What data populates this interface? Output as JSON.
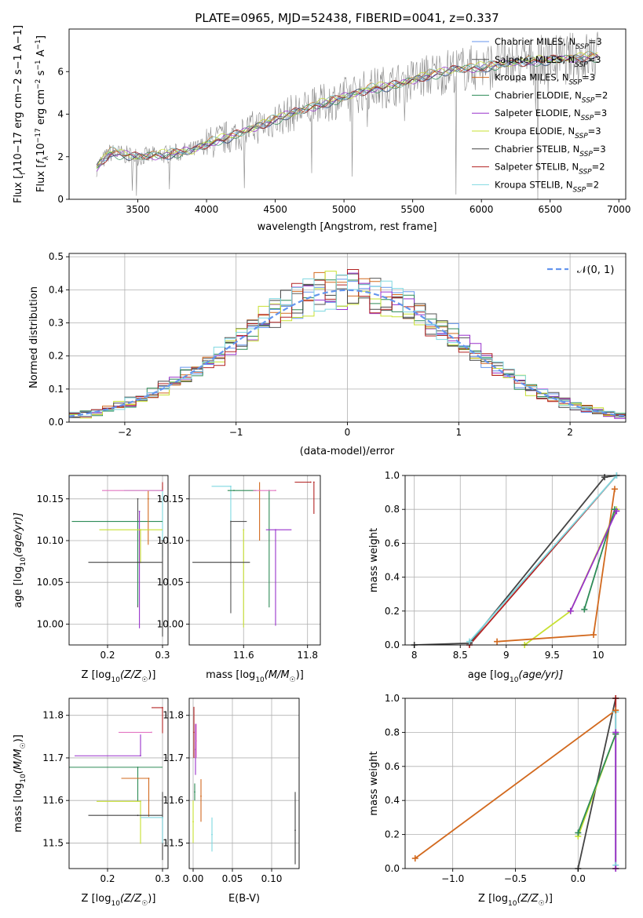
{
  "chart_data": [
    {
      "id": "spectrum",
      "type": "line",
      "title": "PLATE=0965, MJD=52438, FIBERID=0041, z=0.337",
      "xlabel": "wavelength [Angstrom, rest frame]",
      "ylabel_parts": [
        "Flux [",
        "f",
        "λ",
        "10",
        "−17",
        " erg cm",
        "−2",
        " s",
        "−1",
        " A",
        "−1",
        "]"
      ],
      "xlim": [
        3000,
        7050
      ],
      "ylim": [
        0,
        8
      ],
      "xticks": [
        3500,
        4000,
        4500,
        5000,
        5500,
        6000,
        6500,
        7000
      ],
      "yticks": [
        0,
        2,
        4,
        6
      ],
      "grid": false,
      "legend_position": "right",
      "series": [
        {
          "name": "Chabrier MILES",
          "nssp": "3",
          "color": "#6495ed"
        },
        {
          "name": "Salpeter MILES",
          "nssp": "3",
          "color": "#555555"
        },
        {
          "name": "Kroupa MILES",
          "nssp": "3",
          "color": "#d2691e"
        },
        {
          "name": "Chabrier ELODIE",
          "nssp": "2",
          "color": "#2e8b57"
        },
        {
          "name": "Salpeter ELODIE",
          "nssp": "3",
          "color": "#9932cc"
        },
        {
          "name": "Kroupa ELODIE",
          "nssp": "3",
          "color": "#c7e030"
        },
        {
          "name": "Chabrier STELIB",
          "nssp": "3",
          "color": "#444444"
        },
        {
          "name": "Salpeter STELIB",
          "nssp": "2",
          "color": "#b22222"
        },
        {
          "name": "Kroupa STELIB",
          "nssp": "2",
          "color": "#7fd8e0"
        }
      ],
      "continuum": {
        "wavelength": [
          3200,
          3300,
          3500,
          3700,
          3900,
          4000,
          4200,
          4400,
          4600,
          4800,
          5000,
          5200,
          5400,
          5600,
          5800,
          6000,
          6200,
          6400,
          6600,
          6800
        ],
        "flux": [
          1.5,
          2.2,
          2.0,
          2.1,
          2.3,
          2.6,
          3.0,
          3.5,
          4.0,
          4.4,
          4.8,
          5.2,
          5.4,
          5.8,
          6.1,
          6.2,
          6.4,
          6.5,
          6.6,
          6.7
        ]
      },
      "data_range": [
        3200,
        6850
      ]
    },
    {
      "id": "residuals",
      "type": "bar",
      "xlabel": "(data-model)/error",
      "ylabel": "Normed distribution",
      "xlim": [
        -2.5,
        2.5
      ],
      "ylim": [
        0,
        0.51
      ],
      "xticks": [
        -2,
        -1,
        0,
        1,
        2
      ],
      "yticks": [
        0.0,
        0.1,
        0.2,
        0.3,
        0.4,
        0.5
      ],
      "grid": true,
      "legend_position": "top-right",
      "legend_label": "𝒩(0, 1)",
      "bin_width": 0.1,
      "series_colors": [
        "#6495ed",
        "#555555",
        "#d2691e",
        "#2e8b57",
        "#9932cc",
        "#c7e030",
        "#444444",
        "#b22222",
        "#7fd8e0"
      ],
      "gauss_color": "#6495ed"
    },
    {
      "id": "age-vs-z",
      "type": "errorbar",
      "xlabel_parts": [
        "Z [log",
        "10",
        "(Z/Z",
        "☉",
        ")]"
      ],
      "ylabel_parts": [
        "age  [log",
        "10",
        "(age/yr)]"
      ],
      "xlim": [
        0.13,
        0.31
      ],
      "ylim": [
        9.975,
        10.178
      ],
      "xticks": [
        0.2,
        0.3
      ],
      "yticks": [
        10.0,
        10.05,
        10.1,
        10.15
      ],
      "grid": true,
      "points": [
        {
          "color": "#7fd8e0",
          "x": 0.3,
          "xerr": [
            0.07,
            0.0
          ],
          "y": 10.16,
          "yerr": [
            0.08,
            0.005
          ]
        },
        {
          "color": "#b22222",
          "x": 0.3,
          "xerr": [
            0.0,
            0.0
          ],
          "y": 10.16,
          "yerr": [
            0.0,
            0.01
          ]
        },
        {
          "color": "#555555",
          "x": 0.255,
          "xerr": [
            0.0,
            0.0
          ],
          "y": 10.15,
          "yerr": [
            0.13,
            0.0
          ]
        },
        {
          "color": "#2e8b57",
          "x": 0.255,
          "xerr": [
            0.12,
            0.045
          ],
          "y": 10.123,
          "yerr": [
            0.1,
            0.0
          ]
        },
        {
          "color": "#9932cc",
          "x": 0.258,
          "xerr": [
            0.0,
            0.0
          ],
          "y": 10.135,
          "yerr": [
            0.14,
            0.0
          ]
        },
        {
          "color": "#d2691e",
          "x": 0.274,
          "xerr": [
            0.0,
            0.0
          ],
          "y": 10.15,
          "yerr": [
            0.055,
            0.01
          ]
        },
        {
          "color": "#c7e030",
          "x": 0.26,
          "xerr": [
            0.075,
            0.04
          ],
          "y": 10.113,
          "yerr": [
            0.04,
            0.0
          ]
        },
        {
          "color": "#444444",
          "x": 0.255,
          "xerr": [
            0.09,
            0.045
          ],
          "y": 10.074,
          "yerr": [
            0.0,
            0.0
          ]
        },
        {
          "color": "#444444",
          "x": 0.3,
          "xerr": [
            0.0,
            0.0
          ],
          "y": 10.1,
          "yerr": [
            0.115,
            0.0
          ]
        },
        {
          "color": "#e377c2",
          "x": 0.3,
          "xerr": [
            0.11,
            0.0
          ],
          "y": 10.16,
          "yerr": [
            0.0,
            0.0
          ]
        }
      ]
    },
    {
      "id": "age-vs-mass",
      "type": "errorbar",
      "xlabel_parts": [
        "mass [log",
        "10",
        "(M/M",
        "☉",
        ")]"
      ],
      "ylabel_parts": [],
      "xlim": [
        11.43,
        11.84
      ],
      "ylim": [
        9.975,
        10.178
      ],
      "xticks": [
        11.6,
        11.8
      ],
      "yticks": [
        10.0,
        10.05,
        10.1,
        10.15
      ],
      "grid": true,
      "points": [
        {
          "color": "#7fd8e0",
          "x": 11.56,
          "xerr": [
            0.06,
            0.0
          ],
          "y": 10.165,
          "yerr": [
            0.075,
            0.0
          ]
        },
        {
          "color": "#555555",
          "x": 11.56,
          "xerr": [
            0.0,
            0.05
          ],
          "y": 10.123,
          "yerr": [
            0.11,
            0.0
          ]
        },
        {
          "color": "#2e8b57",
          "x": 11.57,
          "xerr": [
            0.02,
            0.07
          ],
          "y": 10.16,
          "yerr": [
            0.0,
            0.0
          ]
        },
        {
          "color": "#2e8b57",
          "x": 11.68,
          "xerr": [
            0.0,
            0.0
          ],
          "y": 10.16,
          "yerr": [
            0.14,
            0.0
          ]
        },
        {
          "color": "#d2691e",
          "x": 11.65,
          "xerr": [
            0.0,
            0.0
          ],
          "y": 10.16,
          "yerr": [
            0.06,
            0.01
          ]
        },
        {
          "color": "#9932cc",
          "x": 11.7,
          "xerr": [
            0.03,
            0.05
          ],
          "y": 10.113,
          "yerr": [
            0.115,
            0.0
          ]
        },
        {
          "color": "#c7e030",
          "x": 11.6,
          "xerr": [
            0.0,
            0.0
          ],
          "y": 10.113,
          "yerr": [
            0.117,
            0.0
          ]
        },
        {
          "color": "#444444",
          "x": 11.56,
          "xerr": [
            0.12,
            0.06
          ],
          "y": 10.074,
          "yerr": [
            0.0,
            0.0
          ]
        },
        {
          "color": "#b22222",
          "x": 11.81,
          "xerr": [
            0.05,
            0.0
          ],
          "y": 10.17,
          "yerr": [
            0.0,
            0.0
          ]
        },
        {
          "color": "#b22222",
          "x": 11.82,
          "xerr": [
            0.0,
            0.0
          ],
          "y": 10.17,
          "yerr": [
            0.038,
            0.0
          ]
        },
        {
          "color": "#e377c2",
          "x": 11.7,
          "xerr": [
            0.07,
            0.0
          ],
          "y": 10.16,
          "yerr": [
            0.0,
            0.0
          ]
        }
      ]
    },
    {
      "id": "mass-weight-vs-age",
      "type": "line",
      "xlabel_parts": [
        "age  [log",
        "10",
        "(age/yr)]"
      ],
      "ylabel": "mass weight",
      "xlim": [
        7.9,
        10.3
      ],
      "ylim": [
        0,
        1
      ],
      "xticks": [
        8.0,
        8.5,
        9.0,
        9.5,
        10.0
      ],
      "yticks": [
        0.0,
        0.2,
        0.4,
        0.6,
        0.8,
        1.0
      ],
      "grid": true,
      "series": [
        {
          "color": "#444444",
          "x": [
            8.0,
            8.6,
            10.07,
            10.2
          ],
          "y": [
            0.0,
            0.01,
            0.99,
            1.0
          ]
        },
        {
          "color": "#b22222",
          "x": [
            8.6,
            10.2
          ],
          "y": [
            0.0,
            1.0
          ]
        },
        {
          "color": "#7fd8e0",
          "x": [
            8.6,
            10.2
          ],
          "y": [
            0.02,
            1.0
          ]
        },
        {
          "color": "#c7e030",
          "x": [
            9.2,
            9.7,
            10.2
          ],
          "y": [
            0.0,
            0.2,
            0.8
          ]
        },
        {
          "color": "#d2691e",
          "x": [
            8.9,
            9.95,
            10.18
          ],
          "y": [
            0.02,
            0.06,
            0.92
          ]
        },
        {
          "color": "#2e8b57",
          "x": [
            9.85,
            10.18
          ],
          "y": [
            0.21,
            0.8
          ]
        },
        {
          "color": "#9932cc",
          "x": [
            9.7,
            10.2
          ],
          "y": [
            0.2,
            0.79
          ]
        }
      ]
    },
    {
      "id": "mass-vs-z",
      "type": "errorbar",
      "xlabel_parts": [
        "Z [log",
        "10",
        "(Z/Z",
        "☉",
        ")]"
      ],
      "ylabel_parts": [
        "mass [log",
        "10",
        "(M/M",
        "☉",
        ")]"
      ],
      "xlim": [
        0.13,
        0.31
      ],
      "ylim": [
        11.44,
        11.84
      ],
      "xticks": [
        0.2,
        0.3
      ],
      "yticks": [
        11.5,
        11.6,
        11.7,
        11.8
      ],
      "grid": true,
      "points": [
        {
          "color": "#b22222",
          "x": 0.3,
          "xerr": [
            0.02,
            0.0
          ],
          "y": 11.818,
          "yerr": [
            0.06,
            0.0
          ]
        },
        {
          "color": "#e377c2",
          "x": 0.28,
          "xerr": [
            0.06,
            0.0
          ],
          "y": 11.76,
          "yerr": [
            0.0,
            0.0
          ]
        },
        {
          "color": "#9932cc",
          "x": 0.26,
          "xerr": [
            0.12,
            0.0
          ],
          "y": 11.705,
          "yerr": [
            0.0,
            0.05
          ]
        },
        {
          "color": "#2e8b57",
          "x": 0.255,
          "xerr": [
            0.13,
            0.045
          ],
          "y": 11.678,
          "yerr": [
            0.08,
            0.0
          ]
        },
        {
          "color": "#d2691e",
          "x": 0.275,
          "xerr": [
            0.05,
            0.0
          ],
          "y": 11.652,
          "yerr": [
            0.09,
            0.0
          ]
        },
        {
          "color": "#c7e030",
          "x": 0.26,
          "xerr": [
            0.08,
            0.0
          ],
          "y": 11.598,
          "yerr": [
            0.1,
            0.0
          ]
        },
        {
          "color": "#444444",
          "x": 0.255,
          "xerr": [
            0.09,
            0.045
          ],
          "y": 11.565,
          "yerr": [
            0.0,
            0.0
          ]
        },
        {
          "color": "#444444",
          "x": 0.3,
          "xerr": [
            0.0,
            0.0
          ],
          "y": 11.56,
          "yerr": [
            0.1,
            0.06
          ]
        },
        {
          "color": "#7fd8e0",
          "x": 0.3,
          "xerr": [
            0.04,
            0.0
          ],
          "y": 11.56,
          "yerr": [
            0.06,
            0.0
          ]
        }
      ]
    },
    {
      "id": "mass-vs-ebv",
      "type": "errorbar",
      "xlabel": "E(B-V)",
      "ylabel_parts": [],
      "xlim": [
        -0.005,
        0.135
      ],
      "ylim": [
        11.44,
        11.84
      ],
      "xticks": [
        0.0,
        0.05,
        0.1
      ],
      "xtick_labels": [
        "0.00",
        "0.05",
        "0.10"
      ],
      "yticks": [
        11.5,
        11.6,
        11.7,
        11.8
      ],
      "grid": true,
      "points": [
        {
          "color": "#b22222",
          "x": 0.001,
          "xerr": [
            0.0,
            0.0
          ],
          "y": 11.76,
          "yerr": [
            0.06,
            0.06
          ]
        },
        {
          "color": "#9932cc",
          "x": 0.003,
          "xerr": [
            0.0,
            0.0
          ],
          "y": 11.72,
          "yerr": [
            0.06,
            0.06
          ]
        },
        {
          "color": "#e377c2",
          "x": 0.004,
          "xerr": [
            0.0,
            0.0
          ],
          "y": 11.74,
          "yerr": [
            0.04,
            0.04
          ]
        },
        {
          "color": "#d2691e",
          "x": 0.01,
          "xerr": [
            0.0,
            0.0
          ],
          "y": 11.61,
          "yerr": [
            0.06,
            0.04
          ]
        },
        {
          "color": "#c7e030",
          "x": 0.0,
          "xerr": [
            0.0,
            0.0
          ],
          "y": 11.55,
          "yerr": [
            0.05,
            0.05
          ]
        },
        {
          "color": "#2e8b57",
          "x": 0.002,
          "xerr": [
            0.0,
            0.0
          ],
          "y": 11.62,
          "yerr": [
            0.02,
            0.02
          ]
        },
        {
          "color": "#7fd8e0",
          "x": 0.024,
          "xerr": [
            0.0,
            0.0
          ],
          "y": 11.52,
          "yerr": [
            0.04,
            0.04
          ]
        },
        {
          "color": "#444444",
          "x": 0.13,
          "xerr": [
            0.0,
            0.0
          ],
          "y": 11.53,
          "yerr": [
            0.08,
            0.09
          ]
        }
      ]
    },
    {
      "id": "mass-weight-vs-z",
      "type": "line",
      "xlabel_parts": [
        "Z [log",
        "10",
        "(Z/Z",
        "☉",
        ")]"
      ],
      "ylabel": "mass weight",
      "xlim": [
        -1.38,
        0.38
      ],
      "ylim": [
        0,
        1
      ],
      "xticks": [
        -1.0,
        -0.5,
        0.0
      ],
      "xtick_labels": [
        "−1.0",
        "−0.5",
        "0.0"
      ],
      "yticks": [
        0.0,
        0.2,
        0.4,
        0.6,
        0.8,
        1.0
      ],
      "grid": true,
      "series": [
        {
          "color": "#444444",
          "x": [
            0.0,
            0.3
          ],
          "y": [
            0.0,
            1.0
          ]
        },
        {
          "color": "#b22222",
          "x": [
            0.3,
            0.3
          ],
          "y": [
            0.0,
            1.0
          ]
        },
        {
          "color": "#7fd8e0",
          "x": [
            0.3,
            0.3
          ],
          "y": [
            0.02,
            0.92
          ]
        },
        {
          "color": "#c7e030",
          "x": [
            0.0,
            0.3
          ],
          "y": [
            0.19,
            0.79
          ]
        },
        {
          "color": "#2e8b57",
          "x": [
            0.0,
            0.3
          ],
          "y": [
            0.21,
            0.79
          ]
        },
        {
          "color": "#9932cc",
          "x": [
            0.3,
            0.3
          ],
          "y": [
            0.0,
            0.8
          ]
        },
        {
          "color": "#d2691e",
          "x": [
            -1.3,
            0.3
          ],
          "y": [
            0.06,
            0.93
          ]
        }
      ]
    }
  ]
}
